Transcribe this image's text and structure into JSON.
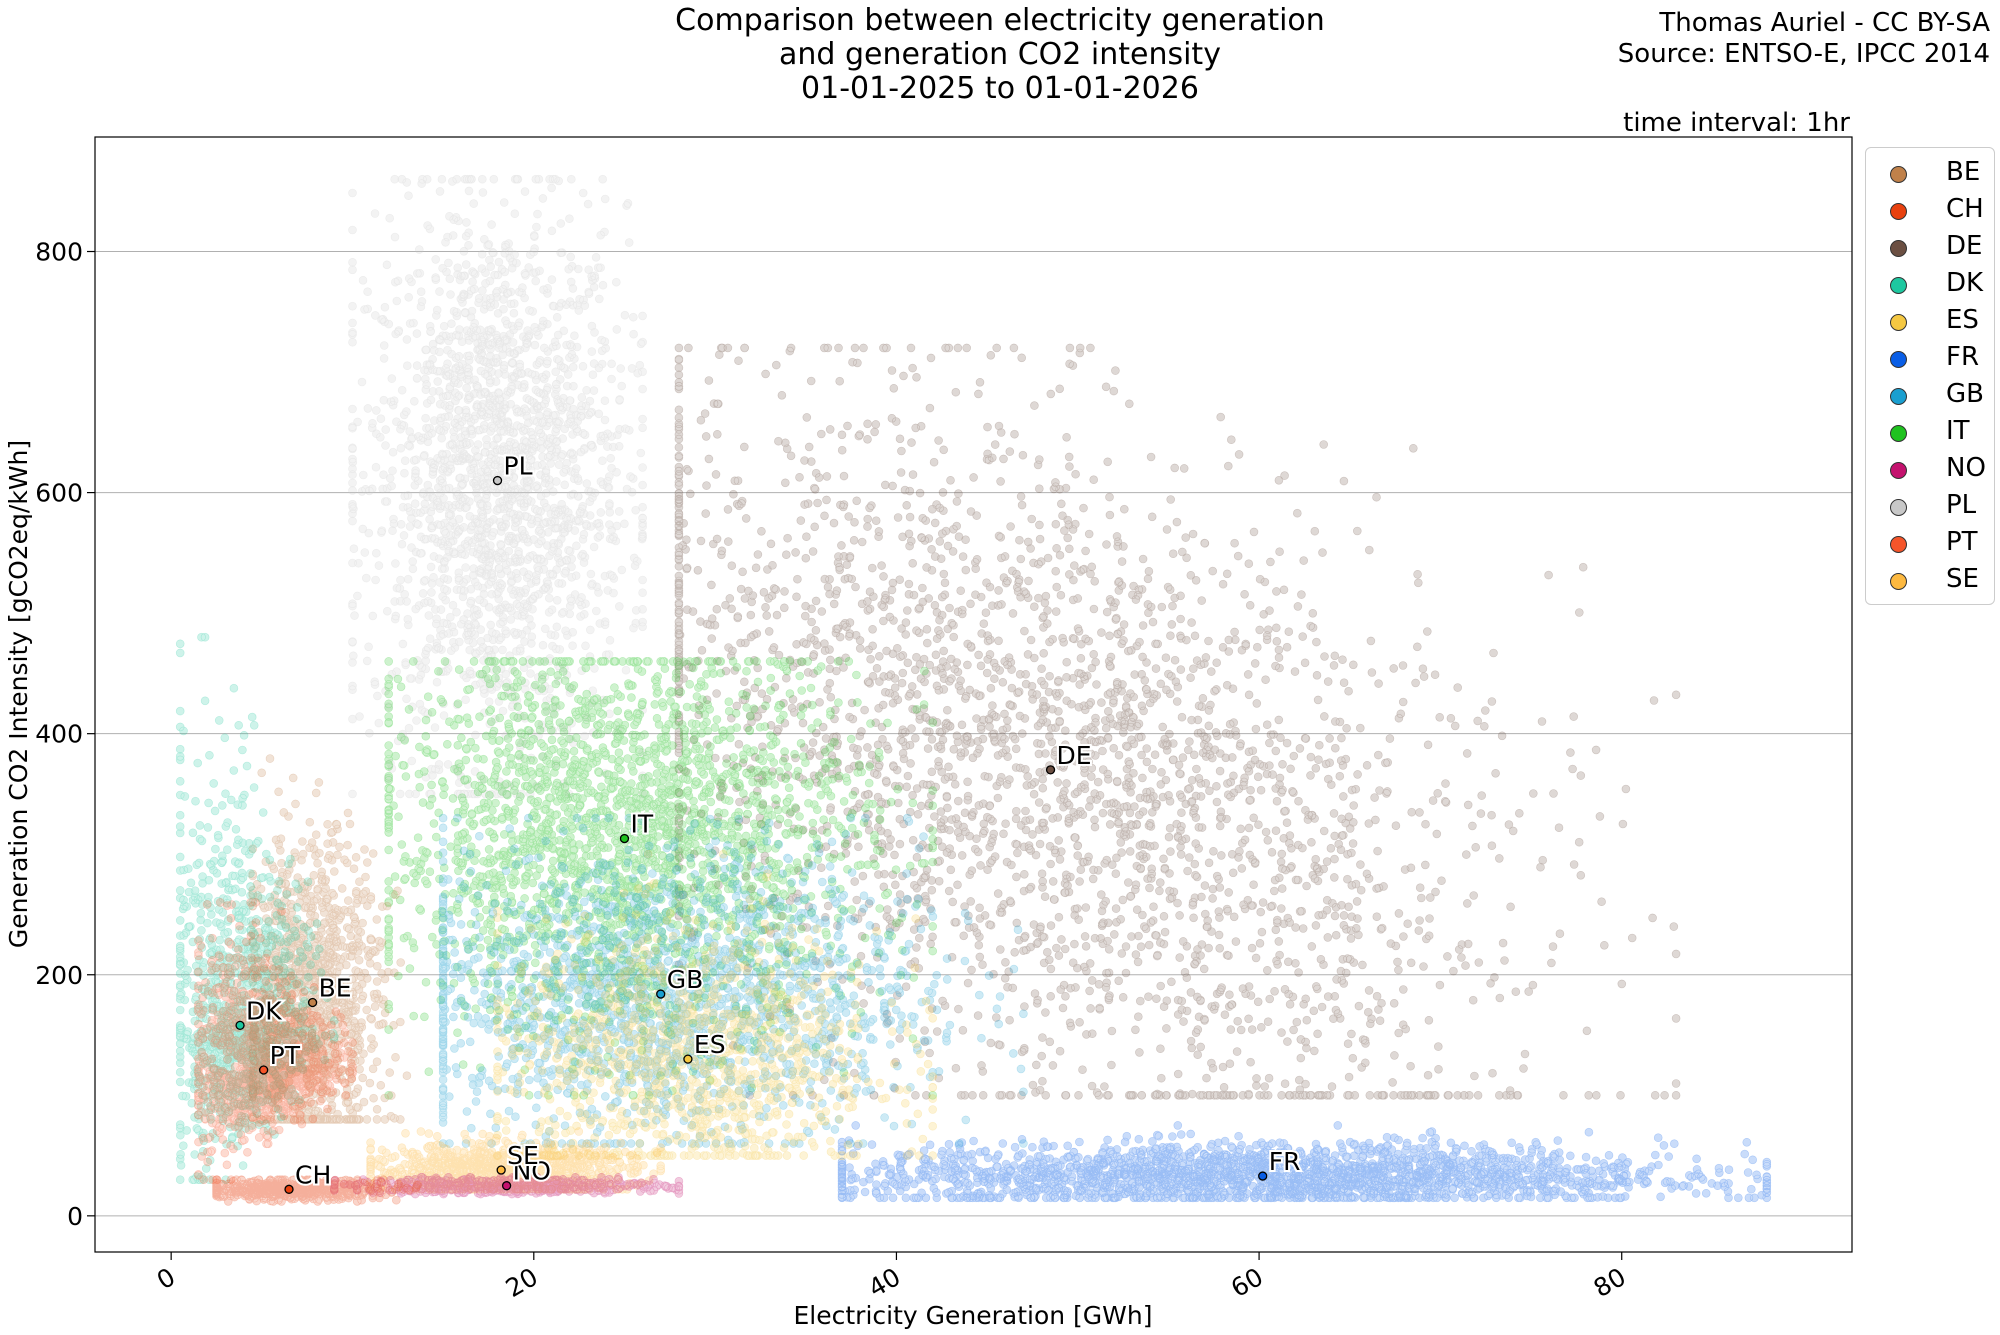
{
  "title_lines": [
    "Comparison between electricity generation",
    "and generation CO2 intensity",
    "01-01-2025 to 01-01-2026"
  ],
  "credit_lines": [
    "Thomas Auriel - CC BY-SA",
    "Source: ENTSO-E, IPCC 2014"
  ],
  "interval_text": "time interval: 1hr",
  "chart_data": {
    "type": "scatter",
    "xlabel": "Electricity Generation [GWh]",
    "ylabel": "Generation CO2 Intensity [gCO2eq/kWh]",
    "xlim": [
      -4.2,
      92.7
    ],
    "ylim": [
      -30,
      895
    ],
    "xticks": [
      0,
      20,
      40,
      60,
      80
    ],
    "yticks": [
      0,
      200,
      400,
      600,
      800
    ],
    "grid": "y-major",
    "legend_position": "upper-right-outside",
    "series": [
      {
        "name": "BE",
        "color": "#c0814a",
        "mean": [
          7.8,
          177
        ],
        "spread": {
          "x": [
            4.5,
            13
          ],
          "y": [
            80,
            380
          ]
        }
      },
      {
        "name": "CH",
        "color": "#e8410f",
        "mean": [
          6.5,
          22
        ],
        "spread": {
          "x": [
            2.5,
            14
          ],
          "y": [
            12,
            30
          ]
        }
      },
      {
        "name": "DE",
        "color": "#6b4f42",
        "mean": [
          48.5,
          370
        ],
        "spread": {
          "x": [
            28,
            83
          ],
          "y": [
            100,
            720
          ]
        }
      },
      {
        "name": "DK",
        "color": "#1ec8a0",
        "mean": [
          3.8,
          158
        ],
        "spread": {
          "x": [
            0.5,
            9
          ],
          "y": [
            30,
            480
          ]
        }
      },
      {
        "name": "ES",
        "color": "#f5c842",
        "mean": [
          28.5,
          130
        ],
        "spread": {
          "x": [
            18,
            42
          ],
          "y": [
            50,
            300
          ]
        }
      },
      {
        "name": "FR",
        "color": "#0a5ee6",
        "mean": [
          60.2,
          33
        ],
        "spread": {
          "x": [
            37,
            88
          ],
          "y": [
            15,
            75
          ]
        }
      },
      {
        "name": "GB",
        "color": "#1a9fd0",
        "mean": [
          27,
          184
        ],
        "spread": {
          "x": [
            15,
            47
          ],
          "y": [
            60,
            330
          ]
        }
      },
      {
        "name": "IT",
        "color": "#1fc21f",
        "mean": [
          25,
          313
        ],
        "spread": {
          "x": [
            12,
            42
          ],
          "y": [
            100,
            460
          ]
        }
      },
      {
        "name": "NO",
        "color": "#c4126e",
        "mean": [
          18.5,
          25
        ],
        "spread": {
          "x": [
            9,
            28
          ],
          "y": [
            18,
            32
          ]
        }
      },
      {
        "name": "PL",
        "color": "#c8c8c8",
        "mean": [
          18,
          610
        ],
        "spread": {
          "x": [
            10,
            26
          ],
          "y": [
            350,
            860
          ]
        }
      },
      {
        "name": "PT",
        "color": "#f5552a",
        "mean": [
          5.1,
          121
        ],
        "spread": {
          "x": [
            1.5,
            10
          ],
          "y": [
            30,
            260
          ]
        }
      },
      {
        "name": "SE",
        "color": "#fdb940",
        "mean": [
          18.2,
          38
        ],
        "spread": {
          "x": [
            11,
            27
          ],
          "y": [
            22,
            70
          ]
        }
      }
    ]
  }
}
